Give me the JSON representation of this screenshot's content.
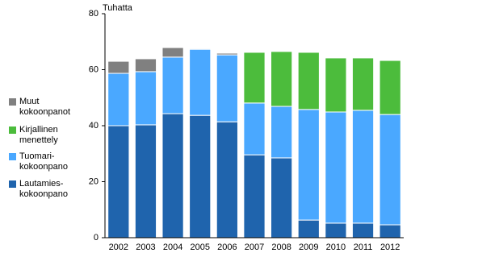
{
  "chart_data": {
    "type": "stacked-bar",
    "y_label": "Tuhatta",
    "categories": [
      "2002",
      "2003",
      "2004",
      "2005",
      "2006",
      "2007",
      "2008",
      "2009",
      "2010",
      "2011",
      "2012"
    ],
    "series": [
      {
        "name": "Lautamies-\nkokoonpano",
        "color": "#1f64ad",
        "values": [
          40,
          40.3,
          44.3,
          43.7,
          41.4,
          29.6,
          28.5,
          6.3,
          5.2,
          5.2,
          4.6
        ]
      },
      {
        "name": "Tuomari-\nkokoonpano",
        "color": "#4aa8ff",
        "values": [
          18.7,
          19,
          20.2,
          23.6,
          23.9,
          18.5,
          18.4,
          39.5,
          39.7,
          40.3,
          39.4
        ]
      },
      {
        "name": "Kirjallinen\nmenettely",
        "color": "#4cbc3c",
        "values": [
          0,
          0,
          0,
          0,
          0,
          18.1,
          19.6,
          20.4,
          19.3,
          18.7,
          19.3
        ]
      },
      {
        "name": "Muut\nkokoonpanot",
        "color": "#808080",
        "values": [
          4.3,
          4.6,
          3.4,
          0.3,
          0.6,
          0,
          0,
          0,
          0,
          0,
          0
        ]
      }
    ],
    "ylim": [
      0,
      80
    ],
    "yticks": [
      0,
      20,
      40,
      60,
      80
    ]
  }
}
